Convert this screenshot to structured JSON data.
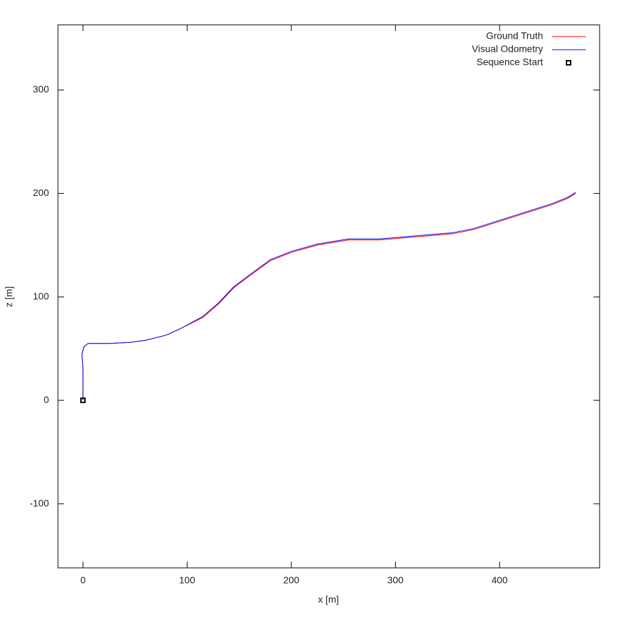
{
  "chart_data": {
    "type": "line",
    "x_label": "x [m]",
    "y_label": "z [m]",
    "xlim": [
      -24,
      496
    ],
    "ylim": [
      -162,
      363
    ],
    "xticks": [
      0,
      100,
      200,
      300,
      400
    ],
    "yticks": [
      -100,
      0,
      100,
      200,
      300
    ],
    "grid": false,
    "legend": "top-right",
    "series": [
      {
        "name": "Ground Truth",
        "color": "#ff0000",
        "style": "line",
        "x": [
          0,
          0,
          -1,
          1,
          5,
          25,
          45,
          60,
          80,
          95,
          115,
          130,
          145,
          165,
          180,
          200,
          225,
          255,
          285,
          320,
          355,
          375,
          400,
          425,
          450,
          465,
          473
        ],
        "values": [
          0,
          30,
          45,
          52,
          55,
          55,
          56,
          58,
          63,
          70,
          80,
          93,
          109,
          124,
          135,
          143,
          150,
          155,
          155,
          158,
          161,
          165,
          173,
          181,
          189,
          195,
          200
        ]
      },
      {
        "name": "Visual Odometry",
        "color": "#0000ff",
        "style": "line",
        "x": [
          0,
          0,
          -1,
          1,
          5,
          25,
          45,
          60,
          80,
          95,
          115,
          130,
          145,
          165,
          180,
          200,
          225,
          255,
          285,
          320,
          355,
          375,
          400,
          425,
          450,
          465,
          473
        ],
        "values": [
          0,
          30,
          45,
          52,
          55,
          55,
          56,
          58,
          63,
          70,
          81,
          94,
          110,
          125,
          136,
          144,
          151,
          156,
          156,
          159,
          162,
          166,
          174,
          182,
          190,
          196,
          201
        ]
      },
      {
        "name": "Sequence Start",
        "color": "#000000",
        "style": "points",
        "x": [
          0
        ],
        "values": [
          0
        ]
      }
    ]
  }
}
